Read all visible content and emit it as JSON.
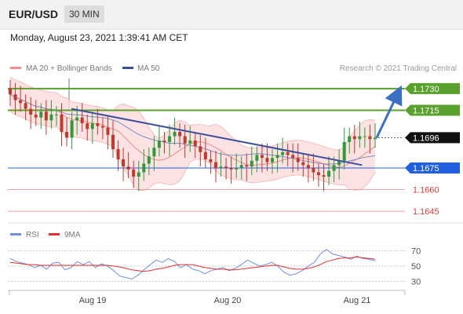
{
  "header": {
    "pair": "EUR/USD",
    "timeframe": "30 MIN"
  },
  "date_text": "Monday, August 23, 2021 1:39:41 AM CET",
  "colors": {
    "resistance": "#5aa02c",
    "support": "#1f5fe0",
    "target_red": "#e33b3b",
    "trend": "#3a4f9a",
    "price_tag": "#111111",
    "bollinger": "#f5a3a3",
    "ma50": "#3a4f9a",
    "rsi": "#6f8fe0",
    "rsi_ma": "#e03030",
    "bull": "#2e9b3a",
    "bear": "#c0392b"
  },
  "chart_data": [
    {
      "type": "candlestick",
      "legend": [
        {
          "label": "MA 20 + Bollinger Bands",
          "color": "#f08c8c"
        },
        {
          "label": "MA 50",
          "color": "#3a4f9a"
        }
      ],
      "credit": "Research © 2021 Trading Central",
      "ylim": [
        1.1638,
        1.1737
      ],
      "x_ticks": [
        "Aug 19",
        "Aug 20",
        "Aug 21"
      ],
      "levels": [
        {
          "value": 1.173,
          "label": "1.1730",
          "kind": "resistance"
        },
        {
          "value": 1.1715,
          "label": "1.1715",
          "kind": "resistance"
        },
        {
          "value": 1.1696,
          "label": "1.1696",
          "kind": "price"
        },
        {
          "value": 1.1675,
          "label": "1.1675",
          "kind": "support"
        },
        {
          "value": 1.166,
          "label": "1.1660",
          "kind": "target"
        },
        {
          "value": 1.1645,
          "label": "1.1645",
          "kind": "target"
        }
      ],
      "closes": [
        1.1726,
        1.1722,
        1.172,
        1.1716,
        1.1712,
        1.171,
        1.1714,
        1.1708,
        1.1712,
        1.1712,
        1.17,
        1.1696,
        1.1708,
        1.171,
        1.1706,
        1.1702,
        1.1706,
        1.1704,
        1.1703,
        1.1698,
        1.1688,
        1.1681,
        1.1676,
        1.1674,
        1.1669,
        1.1672,
        1.1678,
        1.1683,
        1.1689,
        1.1694,
        1.1693,
        1.1697,
        1.17,
        1.1697,
        1.1692,
        1.1694,
        1.169,
        1.1686,
        1.1681,
        1.1679,
        1.1675,
        1.1676,
        1.1675,
        1.1674,
        1.1675,
        1.1677,
        1.1676,
        1.168,
        1.1684,
        1.1682,
        1.1679,
        1.1682,
        1.1684,
        1.1686,
        1.1684,
        1.1682,
        1.1679,
        1.1677,
        1.1675,
        1.1672,
        1.167,
        1.1669,
        1.1673,
        1.1677,
        1.168,
        1.1693,
        1.1697,
        1.1695,
        1.1697,
        1.1697,
        1.1695,
        1.1696
      ],
      "trendline": [
        [
          0,
          1.1716
        ],
        [
          70,
          1.1677
        ]
      ],
      "forecast_arrow": [
        [
          71,
          1.1696
        ],
        [
          77,
          1.173
        ]
      ]
    },
    {
      "type": "line",
      "legend": [
        {
          "label": "RSI",
          "color": "#6f8fe0"
        },
        {
          "label": "9MA",
          "color": "#e03030"
        }
      ],
      "ylim": [
        20,
        80
      ],
      "y_ticks": [
        {
          "value": 70,
          "label": "70"
        },
        {
          "value": 50,
          "label": "50"
        },
        {
          "value": 30,
          "label": "30"
        }
      ],
      "series": [
        {
          "name": "RSI",
          "values": [
            60,
            56,
            54,
            52,
            48,
            51,
            46,
            54,
            55,
            45,
            48,
            56,
            52,
            56,
            48,
            53,
            50,
            44,
            37,
            35,
            33,
            38,
            45,
            52,
            58,
            55,
            60,
            56,
            48,
            52,
            46,
            44,
            40,
            44,
            46,
            48,
            44,
            47,
            52,
            58,
            54,
            50,
            52,
            55,
            50,
            42,
            38,
            40,
            44,
            50,
            55,
            66,
            72,
            66,
            64,
            62,
            59,
            63,
            60,
            59,
            57
          ]
        },
        {
          "name": "9MA",
          "values": [
            55,
            54,
            53,
            52,
            52,
            51,
            51,
            51,
            51,
            51,
            51,
            51,
            51,
            51,
            51,
            51,
            51,
            50,
            49,
            47,
            45,
            44,
            43,
            44,
            46,
            47,
            49,
            51,
            52,
            52,
            52,
            50,
            48,
            47,
            46,
            46,
            45,
            45,
            46,
            47,
            48,
            49,
            50,
            51,
            51,
            49,
            47,
            46,
            46,
            47,
            49,
            52,
            56,
            58,
            60,
            61,
            61,
            62,
            61,
            60,
            59
          ]
        }
      ]
    }
  ]
}
